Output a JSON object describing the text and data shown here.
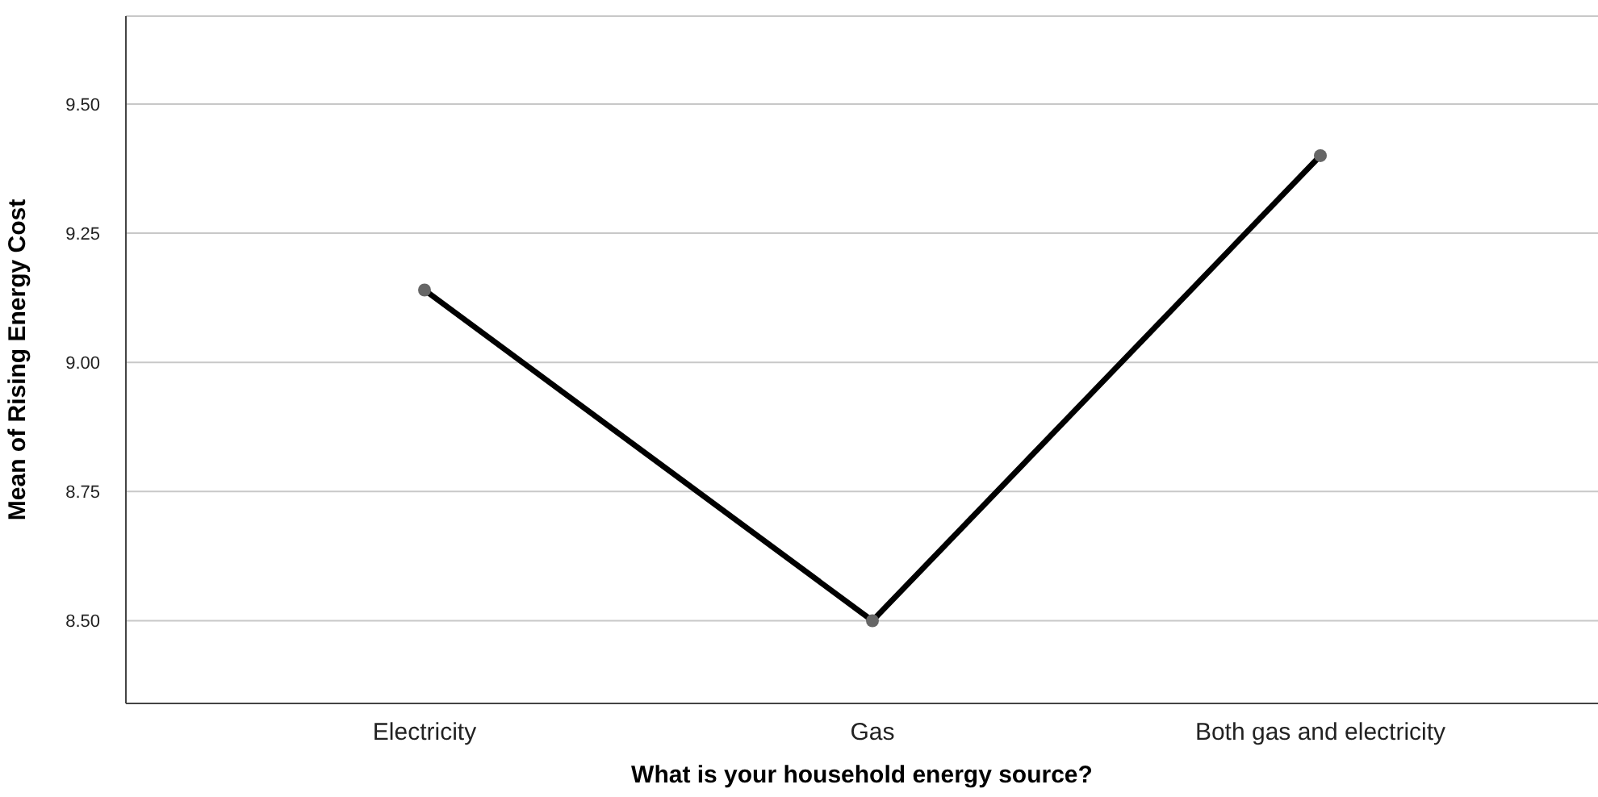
{
  "chart_data": {
    "type": "line",
    "xlabel": "What is your household energy source?",
    "ylabel": "Mean of Rising Energy Cost",
    "categories": [
      "Electricity",
      "Gas",
      "Both gas and electricity"
    ],
    "series": [
      {
        "color": "#000000",
        "values": [
          9.14,
          8.5,
          9.4
        ]
      }
    ],
    "ylim": [
      8.34,
      9.67
    ],
    "yticks": [
      {
        "value": 8.5,
        "label": "8.50"
      },
      {
        "value": 8.75,
        "label": "8.75"
      },
      {
        "value": 9.0,
        "label": "9.00"
      },
      {
        "value": 9.25,
        "label": "9.25"
      },
      {
        "value": 9.5,
        "label": "9.50"
      }
    ],
    "grid": "y",
    "marker": "circle",
    "line_style": "solid",
    "legend": false
  }
}
